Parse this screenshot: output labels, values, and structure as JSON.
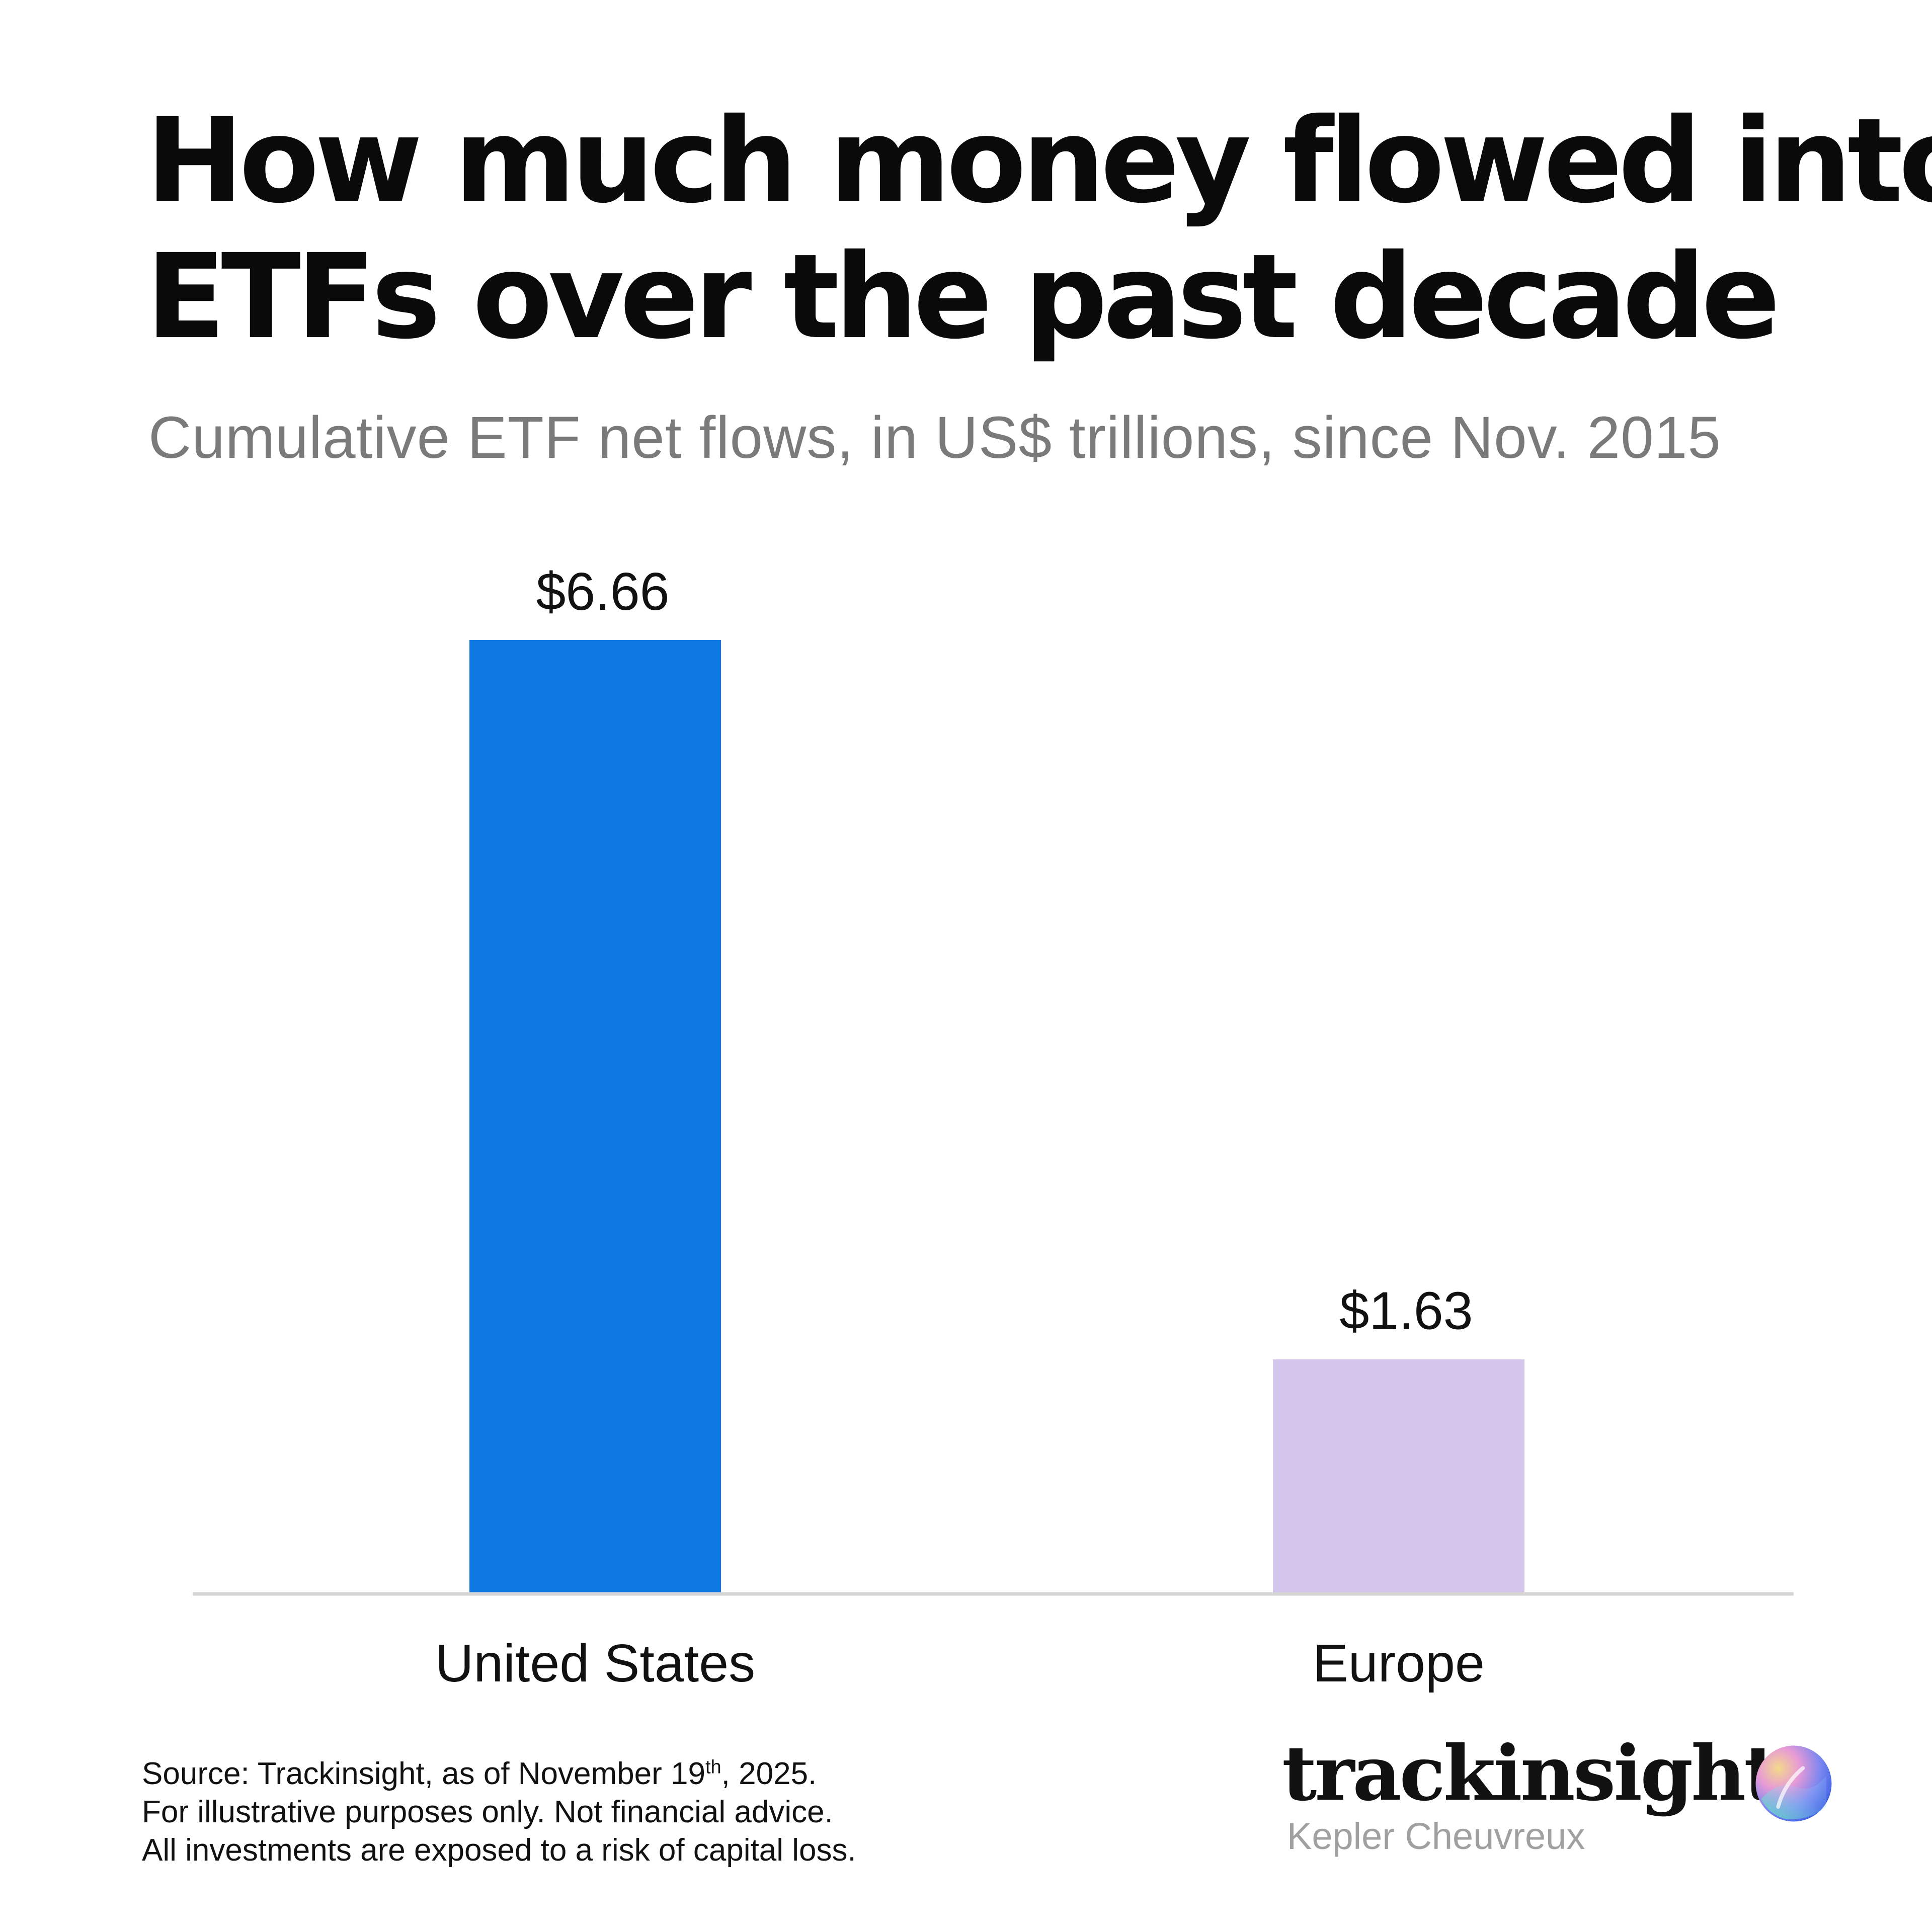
{
  "chart_data": {
    "type": "bar",
    "title": "How much money flowed into ETFs over the past decade",
    "title_lines": [
      "How much money flowed into",
      "ETFs over the past decade"
    ],
    "subtitle": "Cumulative ETF net flows, in US$ trillions, since Nov. 2015",
    "categories": [
      "United States",
      "Europe"
    ],
    "values": [
      6.66,
      1.63
    ],
    "value_labels": [
      "$6.66",
      "$1.63"
    ],
    "colors": [
      "#0e78e3",
      "#d4c5ed"
    ],
    "ylim": [
      0,
      6.66
    ],
    "grid": false,
    "legend": "none"
  },
  "footer": {
    "source_prefix": "Source: Trackinsight, as of November 19",
    "source_sup": "th",
    "source_suffix": ", 2025.",
    "line2": "For illustrative purposes only. Not financial advice.",
    "line3": "All investments are exposed to a risk of capital loss."
  },
  "brand": {
    "name": "trackinsight",
    "sub": "Kepler Cheuvreux",
    "logo_icon": "gradient-orb-icon"
  }
}
